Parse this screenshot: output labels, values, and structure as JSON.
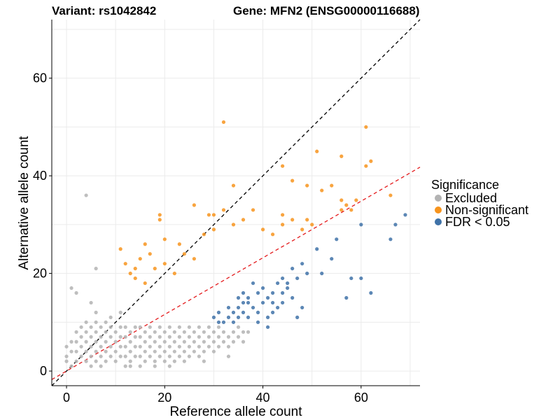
{
  "chart_data": {
    "type": "scatter",
    "title_variant": "Variant: rs1042842",
    "title_gene": "Gene: MFN2 (ENSG00000116688)",
    "xlabel": "Reference allele count",
    "ylabel": "Alternative allele count",
    "xlim": [
      -3,
      72
    ],
    "ylim": [
      -3,
      72
    ],
    "x_ticks": [
      0,
      20,
      40,
      60
    ],
    "y_ticks": [
      0,
      20,
      40,
      60
    ],
    "grid": true,
    "legend": {
      "title": "Significance",
      "placement": "right",
      "entries": [
        {
          "label": "Excluded",
          "color": "#b3b3b3"
        },
        {
          "label": "Non-significant",
          "color": "#f7941d"
        },
        {
          "label": "FDR < 0.05",
          "color": "#3f72a8"
        }
      ]
    },
    "reference_lines": [
      {
        "name": "identity",
        "slope": 1,
        "intercept": 0,
        "color": "#000000",
        "dash": "dashed"
      },
      {
        "name": "fit",
        "slope": 0.58,
        "intercept": 0,
        "color": "#e41a1c",
        "dash": "dashed"
      }
    ],
    "series": [
      {
        "name": "Excluded",
        "color": "#b3b3b3",
        "points": [
          [
            4,
            36
          ],
          [
            6,
            21
          ],
          [
            1,
            17
          ],
          [
            2,
            16
          ],
          [
            0,
            3
          ],
          [
            0,
            2
          ],
          [
            1,
            1
          ],
          [
            1,
            4
          ],
          [
            1,
            6
          ],
          [
            0,
            5
          ],
          [
            2,
            2
          ],
          [
            2,
            4
          ],
          [
            2,
            6
          ],
          [
            2,
            8
          ],
          [
            3,
            3
          ],
          [
            3,
            5
          ],
          [
            3,
            7
          ],
          [
            3,
            9
          ],
          [
            4,
            2
          ],
          [
            4,
            4
          ],
          [
            4,
            6
          ],
          [
            4,
            8
          ],
          [
            4,
            10
          ],
          [
            5,
            1
          ],
          [
            5,
            3
          ],
          [
            5,
            5
          ],
          [
            5,
            7
          ],
          [
            5,
            9
          ],
          [
            6,
            2
          ],
          [
            6,
            4
          ],
          [
            6,
            6
          ],
          [
            6,
            8
          ],
          [
            6,
            10
          ],
          [
            7,
            1
          ],
          [
            7,
            3
          ],
          [
            7,
            5
          ],
          [
            7,
            7
          ],
          [
            7,
            9
          ],
          [
            8,
            2
          ],
          [
            8,
            4
          ],
          [
            8,
            6
          ],
          [
            8,
            8
          ],
          [
            8,
            10
          ],
          [
            9,
            3
          ],
          [
            9,
            5
          ],
          [
            9,
            7
          ],
          [
            9,
            9
          ],
          [
            10,
            2
          ],
          [
            10,
            4
          ],
          [
            10,
            6
          ],
          [
            10,
            8
          ],
          [
            11,
            3
          ],
          [
            11,
            5
          ],
          [
            11,
            7
          ],
          [
            11,
            9
          ],
          [
            12,
            1
          ],
          [
            12,
            3
          ],
          [
            12,
            5
          ],
          [
            12,
            7
          ],
          [
            12,
            9
          ],
          [
            13,
            2
          ],
          [
            13,
            4
          ],
          [
            13,
            6
          ],
          [
            13,
            8
          ],
          [
            14,
            3
          ],
          [
            14,
            5
          ],
          [
            14,
            7
          ],
          [
            14,
            9
          ],
          [
            15,
            1
          ],
          [
            15,
            3
          ],
          [
            15,
            5
          ],
          [
            15,
            7
          ],
          [
            15,
            9
          ],
          [
            16,
            2
          ],
          [
            16,
            4
          ],
          [
            16,
            6
          ],
          [
            16,
            8
          ],
          [
            17,
            3
          ],
          [
            17,
            5
          ],
          [
            17,
            7
          ],
          [
            17,
            9
          ],
          [
            18,
            2
          ],
          [
            18,
            4
          ],
          [
            18,
            6
          ],
          [
            18,
            8
          ],
          [
            19,
            3
          ],
          [
            19,
            5
          ],
          [
            19,
            7
          ],
          [
            19,
            9
          ],
          [
            20,
            2
          ],
          [
            20,
            4
          ],
          [
            20,
            6
          ],
          [
            20,
            8
          ],
          [
            21,
            3
          ],
          [
            21,
            5
          ],
          [
            21,
            7
          ],
          [
            21,
            9
          ],
          [
            22,
            2
          ],
          [
            22,
            4
          ],
          [
            22,
            6
          ],
          [
            22,
            8
          ],
          [
            23,
            3
          ],
          [
            23,
            5
          ],
          [
            23,
            7
          ],
          [
            23,
            9
          ],
          [
            24,
            4
          ],
          [
            24,
            6
          ],
          [
            24,
            8
          ],
          [
            25,
            3
          ],
          [
            25,
            5
          ],
          [
            25,
            7
          ],
          [
            25,
            9
          ],
          [
            26,
            4
          ],
          [
            26,
            6
          ],
          [
            26,
            8
          ],
          [
            27,
            3
          ],
          [
            27,
            5
          ],
          [
            27,
            7
          ],
          [
            27,
            9
          ],
          [
            28,
            4
          ],
          [
            28,
            6
          ],
          [
            28,
            8
          ],
          [
            29,
            5
          ],
          [
            29,
            7
          ],
          [
            29,
            9
          ],
          [
            30,
            4
          ],
          [
            30,
            6
          ],
          [
            30,
            8
          ],
          [
            31,
            5
          ],
          [
            31,
            7
          ],
          [
            31,
            9
          ],
          [
            32,
            6
          ],
          [
            32,
            8
          ],
          [
            33,
            5
          ],
          [
            33,
            7
          ],
          [
            34,
            6
          ],
          [
            34,
            8
          ],
          [
            35,
            7
          ],
          [
            35,
            9
          ],
          [
            36,
            6
          ],
          [
            36,
            8
          ],
          [
            37,
            8
          ],
          [
            18,
            1
          ],
          [
            21,
            1
          ],
          [
            24,
            2
          ],
          [
            28,
            2
          ],
          [
            33,
            3
          ],
          [
            9,
            11
          ],
          [
            6,
            12
          ],
          [
            11,
            12
          ],
          [
            5,
            14
          ],
          [
            13,
            1
          ]
        ]
      },
      {
        "name": "Non-significant",
        "color": "#f7941d",
        "points": [
          [
            32,
            51
          ],
          [
            61,
            50
          ],
          [
            51,
            45
          ],
          [
            56,
            44
          ],
          [
            62,
            43
          ],
          [
            61,
            42
          ],
          [
            44,
            42
          ],
          [
            46,
            39
          ],
          [
            49,
            38
          ],
          [
            52,
            37
          ],
          [
            54,
            38
          ],
          [
            56,
            35
          ],
          [
            59,
            35
          ],
          [
            57,
            34
          ],
          [
            56,
            33
          ],
          [
            58,
            33
          ],
          [
            66,
            36
          ],
          [
            34,
            38
          ],
          [
            26,
            34
          ],
          [
            19,
            32
          ],
          [
            19,
            31
          ],
          [
            29,
            32
          ],
          [
            32,
            33
          ],
          [
            30,
            32
          ],
          [
            38,
            33
          ],
          [
            44,
            32
          ],
          [
            46,
            31
          ],
          [
            49,
            31
          ],
          [
            11,
            25
          ],
          [
            12,
            22
          ],
          [
            14,
            21
          ],
          [
            15,
            23
          ],
          [
            17,
            24
          ],
          [
            16,
            26
          ],
          [
            20,
            27
          ],
          [
            23,
            26
          ],
          [
            13,
            20
          ],
          [
            14,
            19
          ],
          [
            16,
            18
          ],
          [
            18,
            21
          ],
          [
            20,
            22
          ],
          [
            22,
            20
          ],
          [
            24,
            24
          ],
          [
            26,
            23
          ],
          [
            28,
            28
          ],
          [
            30,
            29
          ],
          [
            34,
            30
          ],
          [
            36,
            31
          ],
          [
            40,
            29
          ],
          [
            42,
            28
          ],
          [
            44,
            30
          ],
          [
            48,
            29
          ],
          [
            50,
            30
          ]
        ]
      },
      {
        "name": "FDR < 0.05",
        "color": "#3f72a8",
        "points": [
          [
            69,
            32
          ],
          [
            67,
            30
          ],
          [
            60,
            30
          ],
          [
            66,
            27
          ],
          [
            55,
            27
          ],
          [
            51,
            25
          ],
          [
            54,
            23
          ],
          [
            62,
            16
          ],
          [
            57,
            15
          ],
          [
            58,
            19
          ],
          [
            60,
            19
          ],
          [
            52,
            20
          ],
          [
            49,
            20
          ],
          [
            48,
            22
          ],
          [
            46,
            21
          ],
          [
            44,
            19
          ],
          [
            45,
            18
          ],
          [
            47,
            19
          ],
          [
            45,
            17
          ],
          [
            44,
            16
          ],
          [
            43,
            18
          ],
          [
            46,
            15
          ],
          [
            42,
            16
          ],
          [
            41,
            15
          ],
          [
            40,
            14
          ],
          [
            39,
            12
          ],
          [
            38,
            13
          ],
          [
            38,
            18
          ],
          [
            36,
            16
          ],
          [
            37,
            14
          ],
          [
            35,
            13
          ],
          [
            34,
            12
          ],
          [
            33,
            11
          ],
          [
            32,
            10
          ],
          [
            31,
            12
          ],
          [
            33,
            13
          ],
          [
            35,
            11
          ],
          [
            36,
            12
          ],
          [
            34,
            10
          ],
          [
            31,
            10
          ],
          [
            30,
            11
          ],
          [
            37,
            11
          ],
          [
            39,
            10
          ],
          [
            41,
            11
          ],
          [
            42,
            12
          ],
          [
            43,
            13
          ],
          [
            40,
            17
          ],
          [
            42,
            14
          ],
          [
            44,
            14
          ],
          [
            47,
            11
          ],
          [
            48,
            13
          ],
          [
            41,
            9
          ],
          [
            36,
            14
          ],
          [
            35,
            15
          ],
          [
            37,
            15
          ],
          [
            39,
            16
          ]
        ]
      }
    ]
  }
}
